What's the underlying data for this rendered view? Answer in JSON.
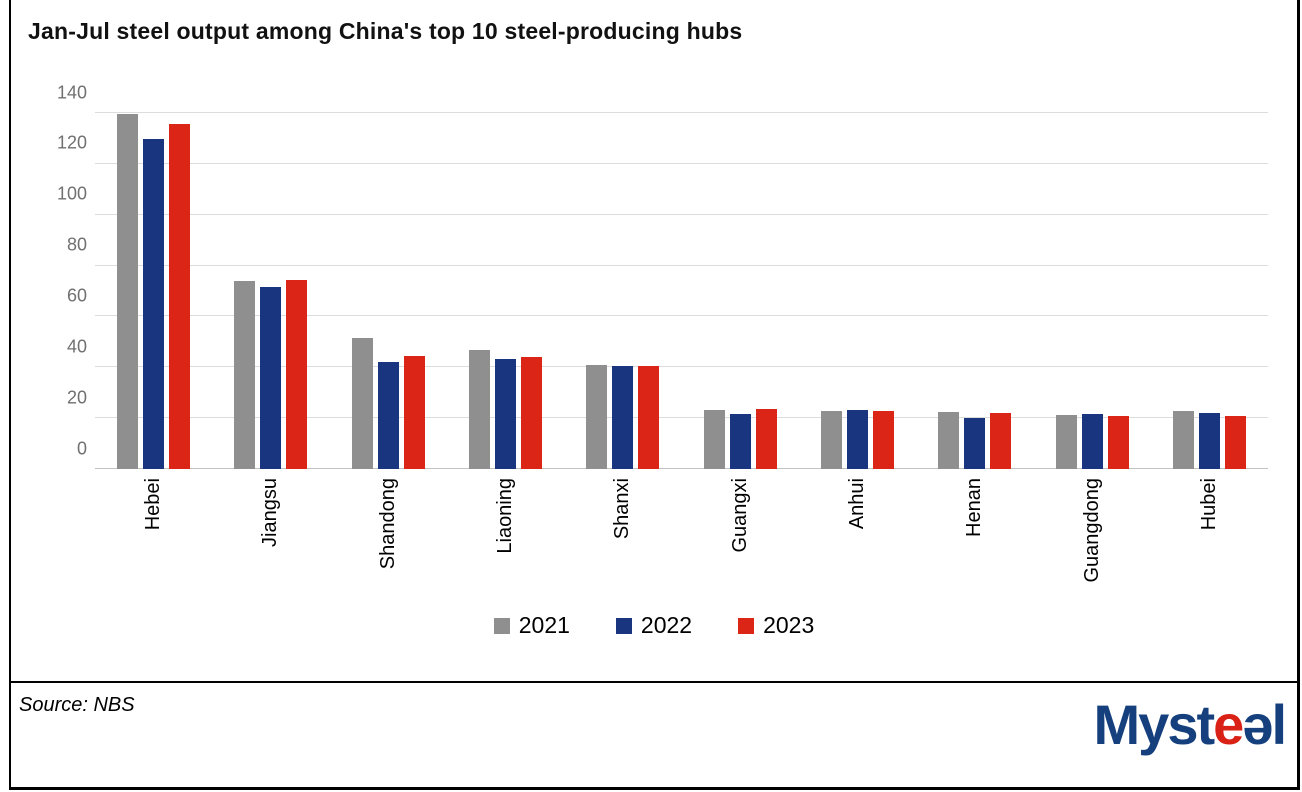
{
  "header": {
    "title": "Jan-Jul steel output among China's top 10 steel-producing hubs"
  },
  "chart_data": {
    "type": "bar",
    "title": "Jan-Jul steel output among China's top 10 steel-producing hubs",
    "categories": [
      "Hebei",
      "Jiangsu",
      "Shandong",
      "Liaoning",
      "Shanxi",
      "Guangxi",
      "Anhui",
      "Henan",
      "Guangdong",
      "Hubei"
    ],
    "series": [
      {
        "name": "2021",
        "color": "#8f8f8f",
        "values": [
          139.5,
          73.9,
          51.5,
          47.0,
          41.1,
          23.2,
          22.7,
          22.3,
          21.2,
          23.0
        ]
      },
      {
        "name": "2022",
        "color": "#1a3580",
        "values": [
          129.9,
          71.5,
          42.2,
          43.3,
          40.7,
          21.7,
          23.2,
          20.0,
          21.5,
          22.2
        ]
      },
      {
        "name": "2023",
        "color": "#da2517",
        "values": [
          135.6,
          74.3,
          44.5,
          44.2,
          40.5,
          23.5,
          22.8,
          22.1,
          21.0,
          20.9
        ]
      }
    ],
    "xlabel": "",
    "ylabel": "",
    "ylim": [
      0,
      140
    ],
    "yticks": [
      0,
      20,
      40,
      60,
      80,
      100,
      120,
      140
    ],
    "grid": true,
    "gridline_color": "#dcdcdc",
    "legend_position": "bottom"
  },
  "footer": {
    "source_label": "Source: NBS",
    "logo": {
      "part1": "Myst",
      "part2": "e",
      "part3": "ə",
      "part4": "l",
      "blue": "#15407d",
      "red": "#d92115"
    }
  }
}
